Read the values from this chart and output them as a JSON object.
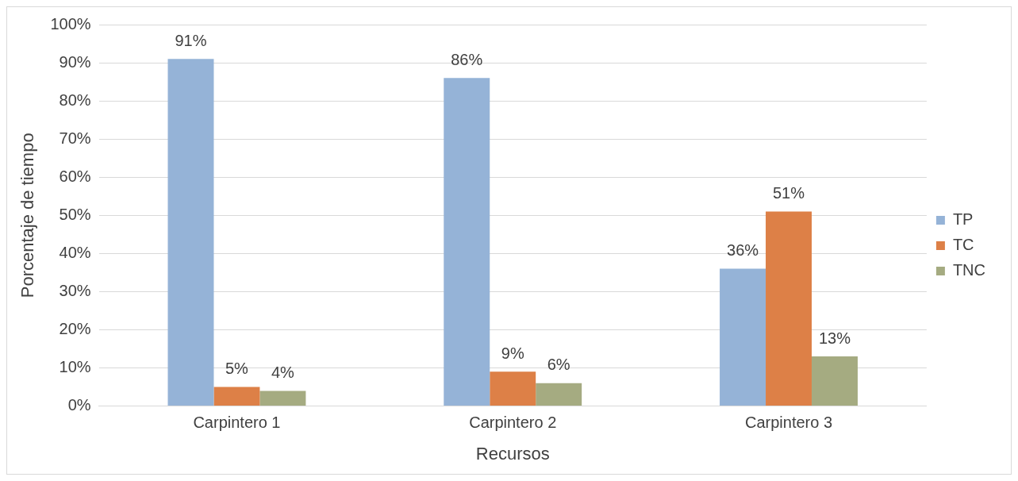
{
  "chart_data": {
    "type": "bar",
    "xlabel": "Recursos",
    "ylabel": "Porcentaje de tiempo",
    "categories": [
      "Carpintero 1",
      "Carpintero 2",
      "Carpintero 3"
    ],
    "series": [
      {
        "name": "TP",
        "color": "#95b3d7",
        "values": [
          91,
          86,
          36
        ],
        "value_labels": [
          "91%",
          "86%",
          "36%"
        ]
      },
      {
        "name": "TC",
        "color": "#dd8047",
        "values": [
          5,
          9,
          51
        ],
        "value_labels": [
          "5%",
          "9%",
          "51%"
        ]
      },
      {
        "name": "TNC",
        "color": "#a5ab81",
        "values": [
          4,
          6,
          13
        ],
        "value_labels": [
          "4%",
          "6%",
          "13%"
        ]
      }
    ],
    "ylim": [
      0,
      100
    ],
    "yticks": [
      {
        "value": 0,
        "label": "0%"
      },
      {
        "value": 10,
        "label": "10%"
      },
      {
        "value": 20,
        "label": "20%"
      },
      {
        "value": 30,
        "label": "30%"
      },
      {
        "value": 40,
        "label": "40%"
      },
      {
        "value": 50,
        "label": "50%"
      },
      {
        "value": 60,
        "label": "60%"
      },
      {
        "value": 70,
        "label": "70%"
      },
      {
        "value": 80,
        "label": "80%"
      },
      {
        "value": 90,
        "label": "90%"
      },
      {
        "value": 100,
        "label": "100%"
      }
    ],
    "grid": "y",
    "legend": "right"
  }
}
